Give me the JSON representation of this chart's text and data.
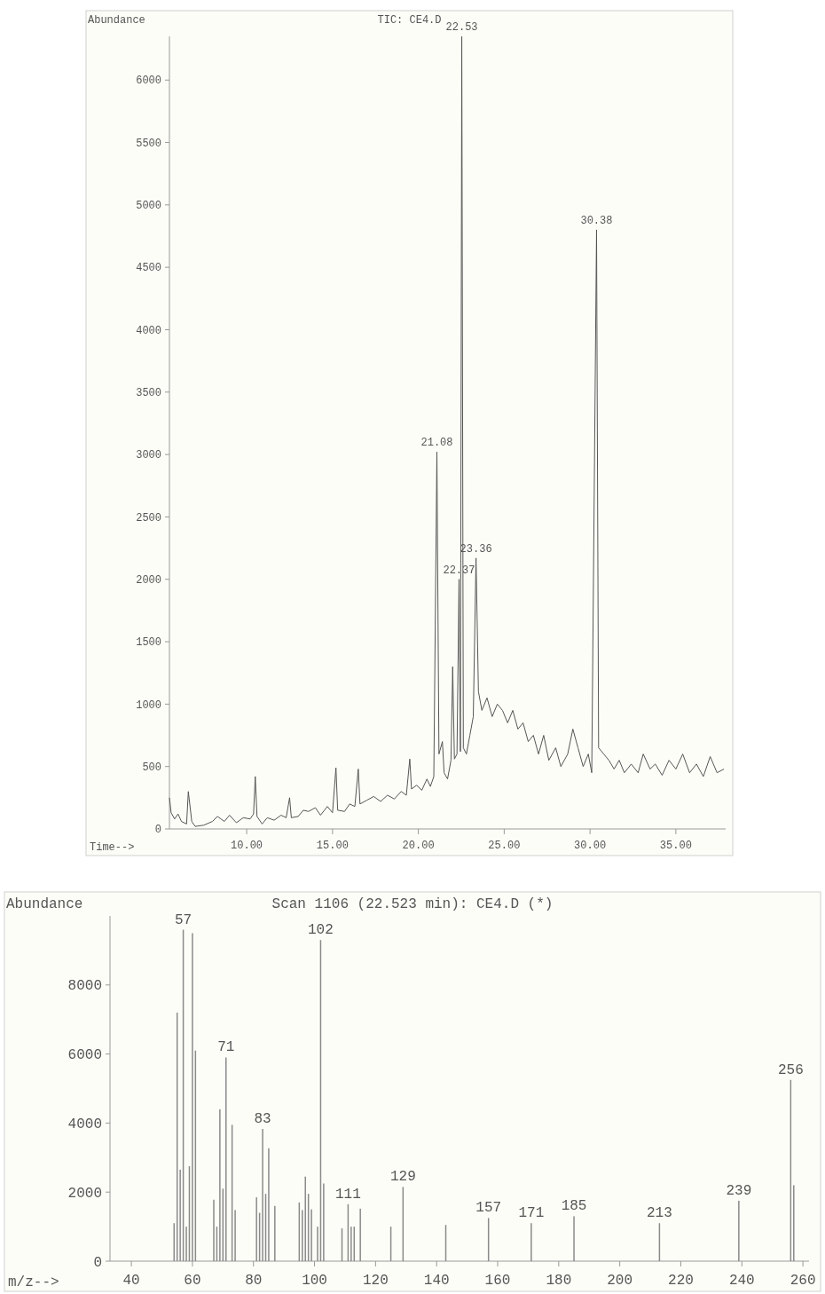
{
  "chart_data": [
    {
      "type": "line",
      "title": "TIC: CE4.D",
      "ylabel": "Abundance",
      "xlabel": "Time-->",
      "x": [
        5.5,
        5.6,
        5.8,
        6.0,
        6.2,
        6.5,
        6.6,
        6.8,
        7.0,
        7.5,
        8.0,
        8.3,
        8.7,
        9.0,
        9.4,
        9.8,
        10.2,
        10.4,
        10.5,
        10.6,
        10.9,
        11.2,
        11.6,
        12.0,
        12.3,
        12.5,
        12.6,
        13.0,
        13.3,
        13.6,
        14.0,
        14.3,
        14.7,
        15.0,
        15.2,
        15.3,
        15.7,
        16.0,
        16.3,
        16.5,
        16.6,
        17.0,
        17.4,
        17.8,
        18.2,
        18.6,
        19.0,
        19.3,
        19.5,
        19.6,
        19.9,
        20.2,
        20.5,
        20.7,
        20.9,
        21.08,
        21.2,
        21.4,
        21.5,
        21.7,
        21.9,
        22.0,
        22.1,
        22.25,
        22.37,
        22.45,
        22.53,
        22.62,
        22.8,
        23.0,
        23.2,
        23.36,
        23.5,
        23.7,
        24.0,
        24.3,
        24.6,
        24.9,
        25.2,
        25.5,
        25.8,
        26.1,
        26.4,
        26.7,
        27.0,
        27.3,
        27.6,
        28.0,
        28.3,
        28.7,
        29.0,
        29.3,
        29.6,
        29.9,
        30.1,
        30.38,
        30.5,
        30.8,
        31.1,
        31.4,
        31.7,
        32.0,
        32.4,
        32.8,
        33.1,
        33.5,
        33.8,
        34.2,
        34.6,
        35.0,
        35.4,
        35.8,
        36.2,
        36.6,
        37.0,
        37.4,
        37.8
      ],
      "series": [
        {
          "color": "#555555",
          "values": [
            250,
            130,
            80,
            120,
            60,
            40,
            300,
            60,
            20,
            30,
            60,
            100,
            60,
            110,
            50,
            90,
            80,
            120,
            420,
            100,
            40,
            90,
            70,
            110,
            90,
            250,
            90,
            100,
            150,
            140,
            170,
            110,
            180,
            130,
            490,
            150,
            140,
            200,
            180,
            480,
            200,
            230,
            260,
            220,
            270,
            240,
            300,
            270,
            560,
            320,
            350,
            310,
            400,
            340,
            420,
            3020,
            600,
            700,
            450,
            400,
            550,
            1300,
            560,
            600,
            2000,
            620,
            6350,
            650,
            600,
            750,
            900,
            2170,
            1100,
            950,
            1050,
            900,
            1000,
            950,
            850,
            950,
            800,
            850,
            700,
            750,
            600,
            750,
            550,
            650,
            500,
            600,
            800,
            650,
            500,
            600,
            450,
            4800,
            650,
            600,
            550,
            480,
            550,
            450,
            520,
            450,
            600,
            480,
            520,
            430,
            550,
            480,
            600,
            450,
            520,
            420,
            580,
            450,
            480
          ]
        }
      ],
      "xlim": [
        5.5,
        37.9
      ],
      "ylim": [
        0,
        6350
      ],
      "xticks": [
        {
          "value": 10,
          "label": "10.00"
        },
        {
          "value": 15,
          "label": "15.00"
        },
        {
          "value": 20,
          "label": "20.00"
        },
        {
          "value": 25,
          "label": "25.00"
        },
        {
          "value": 30,
          "label": "30.00"
        },
        {
          "value": 35,
          "label": "35.00"
        }
      ],
      "yticks": [
        0,
        500,
        1000,
        1500,
        2000,
        2500,
        3000,
        3500,
        4000,
        4500,
        5000,
        5500,
        6000
      ],
      "annotations": [
        {
          "text": "21.08",
          "x": 21.08,
          "y": 3020
        },
        {
          "text": "22.53",
          "x": 22.53,
          "y": 6350
        },
        {
          "text": "22.37",
          "x": 22.37,
          "y": 2000
        },
        {
          "text": "23.36",
          "x": 23.36,
          "y": 2170
        },
        {
          "text": "30.38",
          "x": 30.38,
          "y": 4800
        }
      ]
    },
    {
      "type": "bar",
      "title": "Scan 1106 (22.523 min): CE4.D (*)",
      "ylabel": "Abundance",
      "xlabel": "m/z-->",
      "x": [
        54,
        55,
        56,
        57,
        58,
        59,
        60,
        61,
        67,
        68,
        69,
        70,
        71,
        73,
        74,
        81,
        82,
        83,
        84,
        85,
        87,
        95,
        96,
        97,
        98,
        99,
        101,
        102,
        103,
        109,
        111,
        112,
        113,
        115,
        125,
        129,
        143,
        157,
        171,
        185,
        213,
        239,
        256,
        257
      ],
      "values": [
        1100,
        7200,
        2650,
        9600,
        1000,
        2750,
        9500,
        6100,
        1780,
        1000,
        4400,
        2100,
        5900,
        3950,
        1480,
        1850,
        1400,
        3830,
        1950,
        3270,
        1600,
        1700,
        1480,
        2450,
        1950,
        1500,
        1000,
        9300,
        2250,
        950,
        1650,
        1000,
        1000,
        1520,
        1000,
        2150,
        1050,
        1250,
        1100,
        1300,
        1100,
        1750,
        5250,
        2200
      ],
      "annotations": [
        {
          "text": "57",
          "x": 57,
          "y": 9600
        },
        {
          "text": "71",
          "x": 71,
          "y": 5900
        },
        {
          "text": "83",
          "x": 83,
          "y": 3830
        },
        {
          "text": "102",
          "x": 102,
          "y": 9300
        },
        {
          "text": "111",
          "x": 111,
          "y": 1650
        },
        {
          "text": "129",
          "x": 129,
          "y": 2150
        },
        {
          "text": "157",
          "x": 157,
          "y": 1250
        },
        {
          "text": "171",
          "x": 171,
          "y": 1100
        },
        {
          "text": "185",
          "x": 185,
          "y": 1300
        },
        {
          "text": "213",
          "x": 213,
          "y": 1100
        },
        {
          "text": "239",
          "x": 239,
          "y": 1750
        },
        {
          "text": "256",
          "x": 256,
          "y": 5250
        }
      ],
      "color": "#8a8a8a",
      "xlim": [
        33,
        262
      ],
      "ylim": [
        0,
        10000
      ],
      "xticks": [
        40,
        60,
        80,
        100,
        120,
        140,
        160,
        180,
        200,
        220,
        240,
        260
      ],
      "yticks": [
        0,
        2000,
        4000,
        6000,
        8000
      ]
    }
  ]
}
